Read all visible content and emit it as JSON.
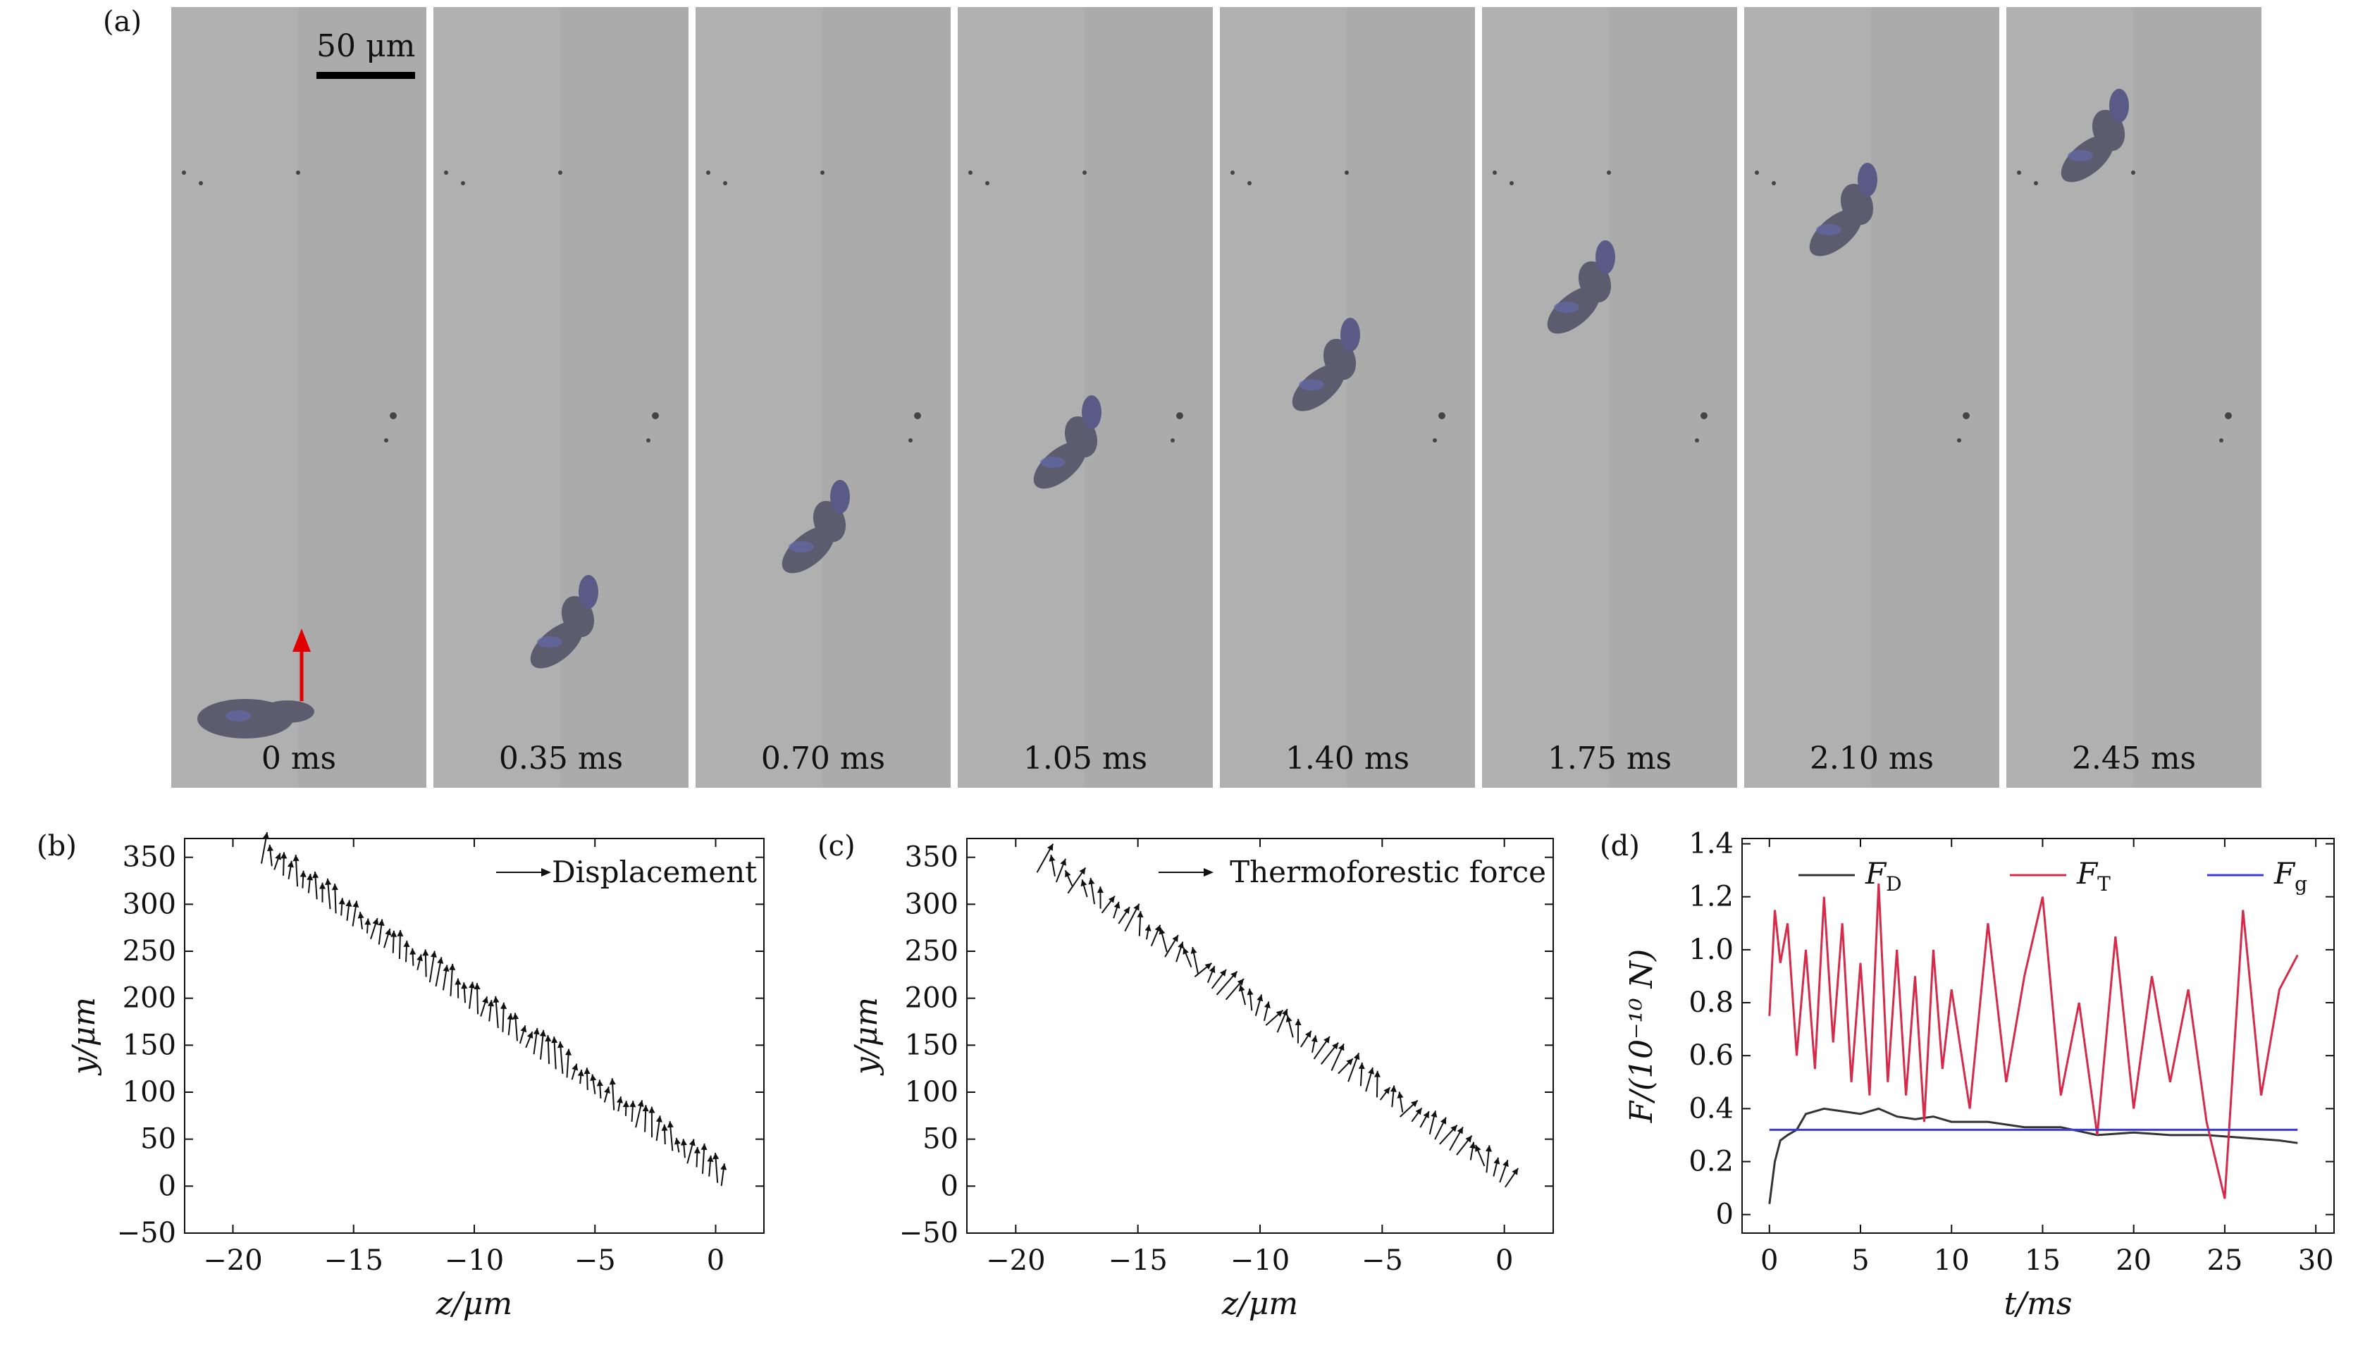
{
  "panel_a": {
    "letter": "(a)",
    "scale_bar": "50 μm",
    "frames": [
      {
        "label": "0 ms"
      },
      {
        "label": "0.35 ms"
      },
      {
        "label": "0.70 ms"
      },
      {
        "label": "1.05 ms"
      },
      {
        "label": "1.40 ms"
      },
      {
        "label": "1.75 ms"
      },
      {
        "label": "2.10 ms"
      },
      {
        "label": "2.45 ms"
      }
    ],
    "frame_background": "#adadad",
    "particle_color": "#5c5c6e",
    "arrow_color": "#e00000"
  },
  "chart_data": [
    {
      "panel": "(b)",
      "type": "scatter",
      "legend": "Displacement",
      "legend_position": "top-right",
      "xlabel": "z/μm",
      "ylabel": "y/μm",
      "xlim": [
        -22,
        2
      ],
      "ylim": [
        -50,
        370
      ],
      "xticks": [
        -20,
        -15,
        -10,
        -5,
        0
      ],
      "xtick_labels": [
        "−20",
        "−15",
        "−10",
        "−5",
        "0"
      ],
      "yticks": [
        -50,
        0,
        50,
        100,
        150,
        200,
        250,
        300,
        350
      ],
      "ytick_labels": [
        "−50",
        "0",
        "50",
        "100",
        "150",
        "200",
        "250",
        "300",
        "350"
      ],
      "trajectory": {
        "z_start": -18.7,
        "y_start": 350,
        "z_end": 0.3,
        "y_end": 5
      },
      "vector_count": 72,
      "vector_dx": 0.05,
      "vector_dy": 25,
      "color": "#111111"
    },
    {
      "panel": "(c)",
      "type": "scatter",
      "legend": "Thermoforestic force",
      "legend_position": "top-right",
      "xlabel": "z/μm",
      "ylabel": "y/μm",
      "xlim": [
        -22,
        2
      ],
      "ylim": [
        -50,
        370
      ],
      "xticks": [
        -20,
        -15,
        -10,
        -5,
        0
      ],
      "xtick_labels": [
        "−20",
        "−15",
        "−10",
        "−5",
        "0"
      ],
      "yticks": [
        -50,
        0,
        50,
        100,
        150,
        200,
        250,
        300,
        350
      ],
      "ytick_labels": [
        "−50",
        "0",
        "50",
        "100",
        "150",
        "200",
        "250",
        "300",
        "350"
      ],
      "trajectory": {
        "z_start": -18.8,
        "y_start": 340,
        "z_end": 0.3,
        "y_end": 3
      },
      "vector_count": 60,
      "vector_dx": 0.15,
      "vector_dy": 22,
      "color": "#111111"
    },
    {
      "panel": "(d)",
      "type": "line",
      "xlabel": "t/ms",
      "ylabel": "F/(10⁻¹⁰ N)",
      "xlim": [
        -1.5,
        31
      ],
      "ylim": [
        -0.07,
        1.42
      ],
      "xticks": [
        0,
        5,
        10,
        15,
        20,
        25,
        30
      ],
      "xtick_labels": [
        "0",
        "5",
        "10",
        "15",
        "20",
        "25",
        "30"
      ],
      "yticks": [
        0,
        0.2,
        0.4,
        0.6,
        0.8,
        1.0,
        1.2,
        1.4
      ],
      "ytick_labels": [
        "0",
        "0.2",
        "0.4",
        "0.6",
        "0.8",
        "1.0",
        "1.2",
        "1.4"
      ],
      "legend_position": "top",
      "series": [
        {
          "name": "F_D",
          "legend_main": "F",
          "legend_sub": "D",
          "color": "#333333",
          "t": [
            0,
            0.3,
            0.6,
            1.0,
            1.5,
            2,
            3,
            4,
            5,
            6,
            7,
            8,
            9,
            10,
            12,
            14,
            16,
            18,
            20,
            22,
            24,
            26,
            28,
            29
          ],
          "values": [
            0.04,
            0.2,
            0.28,
            0.3,
            0.32,
            0.38,
            0.4,
            0.39,
            0.38,
            0.4,
            0.37,
            0.36,
            0.37,
            0.35,
            0.35,
            0.33,
            0.33,
            0.3,
            0.31,
            0.3,
            0.3,
            0.29,
            0.28,
            0.27
          ]
        },
        {
          "name": "F_T",
          "legend_main": "F",
          "legend_sub": "T",
          "color": "#d62a4a",
          "t": [
            0,
            0.3,
            0.6,
            1.0,
            1.5,
            2,
            2.5,
            3,
            3.5,
            4,
            4.5,
            5,
            5.5,
            6,
            6.5,
            7,
            7.5,
            8,
            8.5,
            9,
            9.5,
            10,
            11,
            12,
            13,
            14,
            15,
            16,
            17,
            18,
            19,
            20,
            21,
            22,
            23,
            24,
            25,
            26,
            27,
            28,
            29
          ],
          "values": [
            0.75,
            1.15,
            0.95,
            1.1,
            0.6,
            1.0,
            0.55,
            1.2,
            0.65,
            1.1,
            0.5,
            0.95,
            0.45,
            1.25,
            0.5,
            1.0,
            0.45,
            0.9,
            0.35,
            1.0,
            0.55,
            0.85,
            0.4,
            1.1,
            0.5,
            0.9,
            1.2,
            0.45,
            0.8,
            0.3,
            1.05,
            0.4,
            0.9,
            0.5,
            0.85,
            0.35,
            0.06,
            1.15,
            0.45,
            0.85,
            0.98
          ]
        },
        {
          "name": "F_g",
          "legend_main": "F",
          "legend_sub": "g",
          "color": "#3a3ad8",
          "t": [
            0,
            29
          ],
          "values": [
            0.32,
            0.32
          ]
        }
      ]
    }
  ]
}
